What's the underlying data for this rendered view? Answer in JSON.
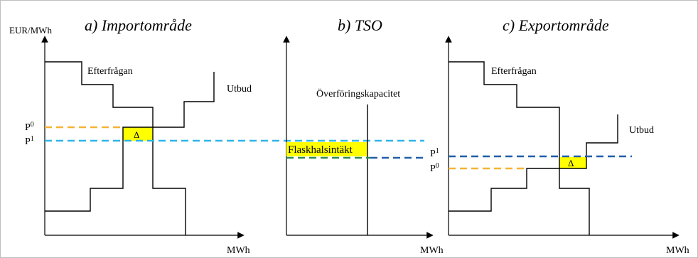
{
  "axis": {
    "y_label": "EUR/MWh",
    "x_label": "MWh"
  },
  "panels": {
    "a": {
      "title": "a) Importområde",
      "demand_label": "Efterfrågan",
      "supply_label": "Utbud",
      "price_labels": [
        "P",
        "P"
      ],
      "price_superscripts": [
        "0",
        "1"
      ],
      "delta": "Δ"
    },
    "b": {
      "title": "b) TSO",
      "capacity_label": "Överföringskapacitet",
      "rent_label": "Flaskhalsintäkt"
    },
    "c": {
      "title": "c) Exportområde",
      "demand_label": "Efterfrågan",
      "supply_label": "Utbud",
      "price_labels": [
        "P",
        "P"
      ],
      "price_superscripts": [
        "1",
        "0"
      ],
      "delta": "Δ"
    }
  },
  "colors": {
    "orange_dashed": "#f5b335",
    "cyan_dashed": "#2fb5e8",
    "navy_dashed": "#1f5fa8",
    "green_dashed": "#2e8b57",
    "highlight": "#ffff00",
    "line": "#000000"
  }
}
